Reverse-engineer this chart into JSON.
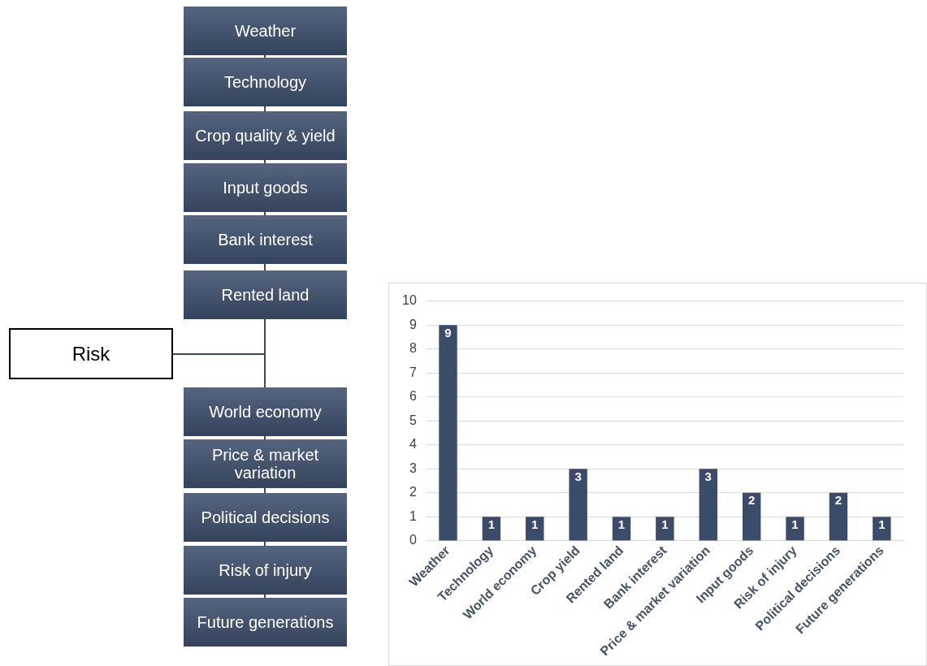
{
  "chart_data": [
    {
      "type": "other",
      "title": "Risk",
      "annotations": [
        "Weather",
        "Technology",
        "Crop quality & yield",
        "Input goods",
        "Bank interest",
        "Rented land",
        "World economy",
        "Price & market variation",
        "Political decisions",
        "Risk of injury",
        "Future generations"
      ]
    },
    {
      "type": "bar",
      "categories": [
        "Weather",
        "Technology",
        "World economy",
        "Crop yield",
        "Rented land",
        "Bank interest",
        "Price & market variation",
        "Input goods",
        "Risk of injury",
        "Political decisions",
        "Future generations"
      ],
      "values": [
        9,
        1,
        1,
        3,
        1,
        1,
        3,
        2,
        1,
        2,
        1
      ],
      "color": "#3b4c6b",
      "ylim": [
        0,
        10
      ],
      "yticks": [
        0,
        1,
        2,
        3,
        4,
        5,
        6,
        7,
        8,
        9,
        10
      ],
      "grid": "y",
      "legend": false,
      "data_labels": true
    }
  ]
}
